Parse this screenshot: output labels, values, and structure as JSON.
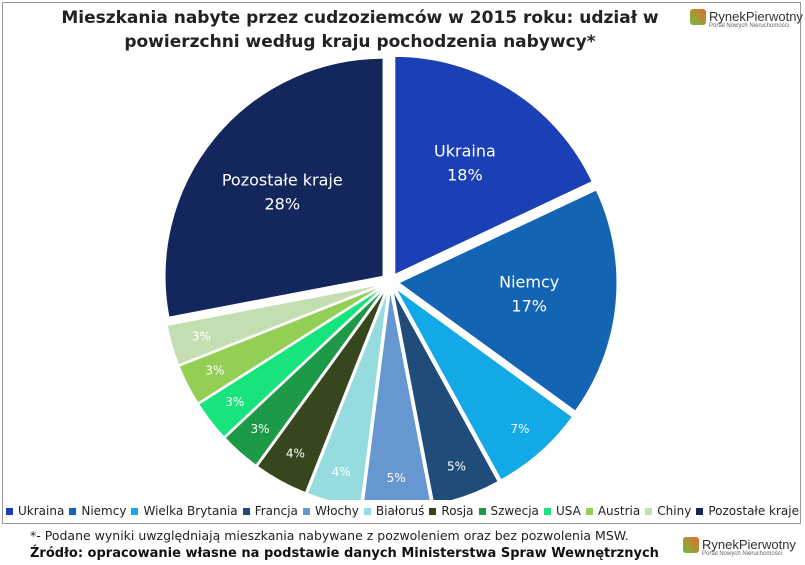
{
  "chart_data": {
    "type": "pie",
    "title": "Mieszkania nabyte przez cudzoziemców w 2015 roku: udział w powierzchni według kraju pochodzenia nabywcy*",
    "categories": [
      "Ukraina",
      "Niemcy",
      "Wielka Brytania",
      "Francja",
      "Włochy",
      "Białoruś",
      "Rosja",
      "Szwecja",
      "USA",
      "Austria",
      "Chiny",
      "Pozostałe kraje"
    ],
    "values": [
      18,
      17,
      7,
      5,
      5,
      4,
      4,
      3,
      3,
      3,
      3,
      28
    ],
    "value_labels": [
      "18%",
      "17%",
      "7%",
      "5%",
      "5%",
      "4%",
      "4%",
      "3%",
      "3%",
      "3%",
      "3%",
      "28%"
    ],
    "colors": [
      "#1b3fb5",
      "#1464b4",
      "#12a9e6",
      "#1f4c78",
      "#6797d0",
      "#95dcdf",
      "#36461d",
      "#1d9a47",
      "#17e47c",
      "#93cf55",
      "#c3dfb1",
      "#13275c"
    ],
    "legend": "bottom"
  },
  "footnote": "*- Podane wyniki uwzględniają mieszkania nabywane z pozwoleniem oraz bez pozwolenia MSW.",
  "source": "Źródło: opracowanie własne na podstawie danych Ministerstwa Spraw Wewnętrznych",
  "logo": {
    "name": "RynekPierwotny",
    "tagline": "Portal Nowych Nieruchomości"
  }
}
